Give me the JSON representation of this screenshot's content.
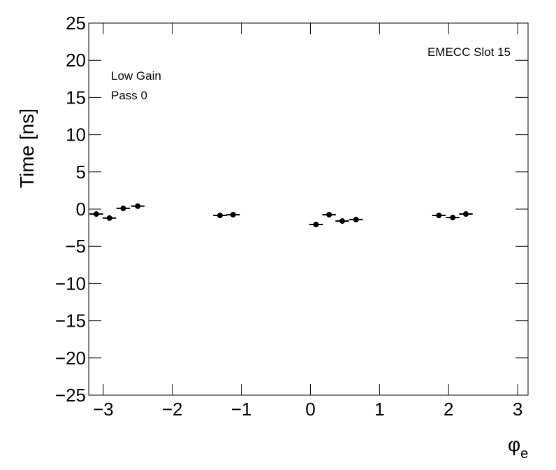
{
  "chart_data": {
    "type": "scatter",
    "x_label": "φ",
    "x_label_subscript": "e",
    "y_label": "Time [ns]",
    "annotations": [
      "EMECC Slot 15",
      "Low Gain",
      "Pass 0"
    ],
    "x": [
      -3.1,
      -2.91,
      -2.71,
      -2.5,
      -1.31,
      -1.12,
      0.08,
      0.27,
      0.46,
      0.66,
      1.86,
      2.06,
      2.25
    ],
    "xerr": 0.098,
    "series": [
      {
        "color": "#000000",
        "values": [
          -0.66,
          -1.2,
          0.1,
          0.4,
          -0.85,
          -0.75,
          -2.07,
          -0.75,
          -1.6,
          -1.4,
          -0.85,
          -1.13,
          -0.66
        ]
      }
    ],
    "xlim": [
      -3.21,
      3.15
    ],
    "ylim": [
      -25,
      25
    ],
    "xticks": [
      {
        "value": -3,
        "label": "−3"
      },
      {
        "value": -2,
        "label": "−2"
      },
      {
        "value": -1,
        "label": "−1"
      },
      0,
      1,
      2,
      3
    ],
    "yticks": [
      {
        "value": -25,
        "label": "−25"
      },
      {
        "value": -20,
        "label": "−20"
      },
      {
        "value": -15,
        "label": "−15"
      },
      {
        "value": -10,
        "label": "−10"
      },
      {
        "value": -5,
        "label": "−5"
      },
      0,
      5,
      10,
      15,
      20,
      25
    ],
    "grid": false
  }
}
